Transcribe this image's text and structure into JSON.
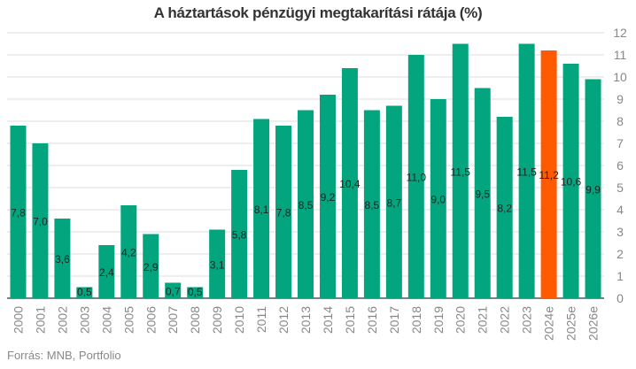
{
  "chart_data": {
    "type": "bar",
    "title": "A háztartások pénzügyi megtakarítási rátája (%)",
    "xlabel": "",
    "ylabel": "",
    "ylim": [
      0,
      12
    ],
    "yticks": [
      0,
      1,
      2,
      3,
      4,
      5,
      6,
      7,
      8,
      9,
      10,
      11,
      12
    ],
    "grid": true,
    "y_axis_position": "right",
    "categories": [
      "2000",
      "2001",
      "2002",
      "2003",
      "2004",
      "2005",
      "2006",
      "2007",
      "2008",
      "2009",
      "2010",
      "2011",
      "2012",
      "2013",
      "2014",
      "2015",
      "2016",
      "2017",
      "2018",
      "2019",
      "2020",
      "2021",
      "2022",
      "2023",
      "2024e",
      "2025e",
      "2026e"
    ],
    "values": [
      7.8,
      7.0,
      3.6,
      0.5,
      2.4,
      4.2,
      2.9,
      0.7,
      0.5,
      3.1,
      5.8,
      8.1,
      7.8,
      8.5,
      9.2,
      10.4,
      8.5,
      8.7,
      11.0,
      9.0,
      11.5,
      9.5,
      8.2,
      11.5,
      11.2,
      10.6,
      9.9
    ],
    "labels": [
      "7,8",
      "7,0",
      "3,6",
      "0,5",
      "2,4",
      "4,2",
      "2,9",
      "0,7",
      "0,5",
      "3,1",
      "5,8",
      "8,1",
      "7,8",
      "8,5",
      "9,2",
      "10,4",
      "8,5",
      "8,7",
      "11,0",
      "9,0",
      "11,5",
      "9,5",
      "8,2",
      "11,5",
      "11,2",
      "10,6",
      "9,9"
    ],
    "highlight_index": 24,
    "colors": {
      "bar": "#02a57e",
      "highlight": "#ff5a00",
      "grid": "#dddddd",
      "label": "#222222",
      "tick": "#888888"
    }
  },
  "source": "Forrás: MNB, Portfolio"
}
